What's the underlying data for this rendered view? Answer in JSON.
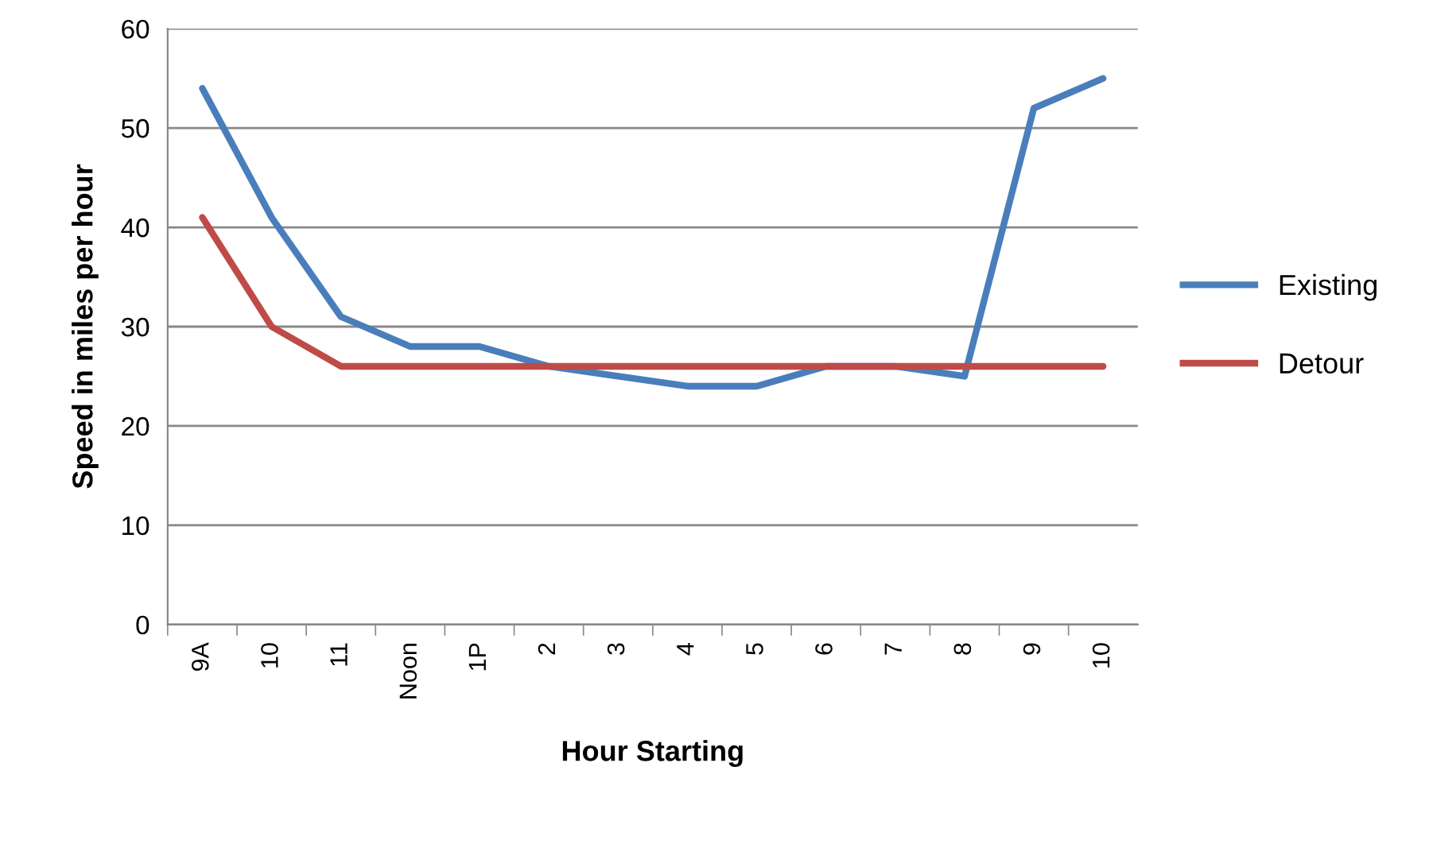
{
  "chart_data": {
    "type": "line",
    "xlabel": "Hour Starting",
    "ylabel": "Speed in miles per hour",
    "categories": [
      "9A",
      "10",
      "11",
      "Noon",
      "1P",
      "2",
      "3",
      "4",
      "5",
      "6",
      "7",
      "8",
      "9",
      "10"
    ],
    "series": [
      {
        "name": "Existing",
        "color": "#4a7ebb",
        "values": [
          54,
          41,
          31,
          28,
          28,
          26,
          25,
          24,
          24,
          26,
          26,
          25,
          52,
          55
        ]
      },
      {
        "name": "Detour",
        "color": "#be4b48",
        "values": [
          41,
          30,
          26,
          26,
          26,
          26,
          26,
          26,
          26,
          26,
          26,
          26,
          26,
          26
        ]
      }
    ],
    "ylim": [
      0,
      60
    ],
    "yticks": [
      0,
      10,
      20,
      30,
      40,
      50,
      60
    ],
    "grid": "y",
    "legend": "right",
    "marker": "none",
    "line_style": "solid"
  }
}
